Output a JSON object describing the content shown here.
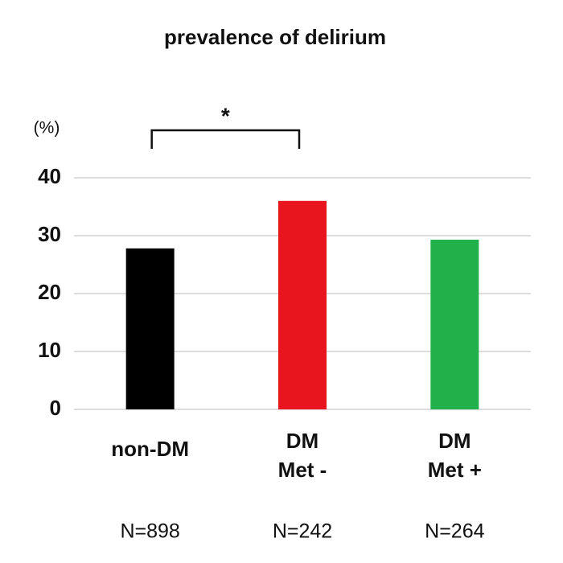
{
  "chart_data": {
    "type": "bar",
    "title": "prevalence of delirium",
    "y_label": "(%)",
    "categories": [
      [
        "non-DM"
      ],
      [
        "DM",
        "Met -"
      ],
      [
        "DM",
        "Met +"
      ]
    ],
    "values": [
      27.8,
      36.0,
      29.3
    ],
    "colors": [
      "#000000",
      "#e8141e",
      "#22b04b"
    ],
    "sample_sizes": [
      "N=898",
      "N=242",
      "N=264"
    ],
    "significance": "*",
    "ylim": [
      0,
      40
    ],
    "yticks": [
      0,
      10,
      20,
      30,
      40
    ],
    "grid": true
  }
}
